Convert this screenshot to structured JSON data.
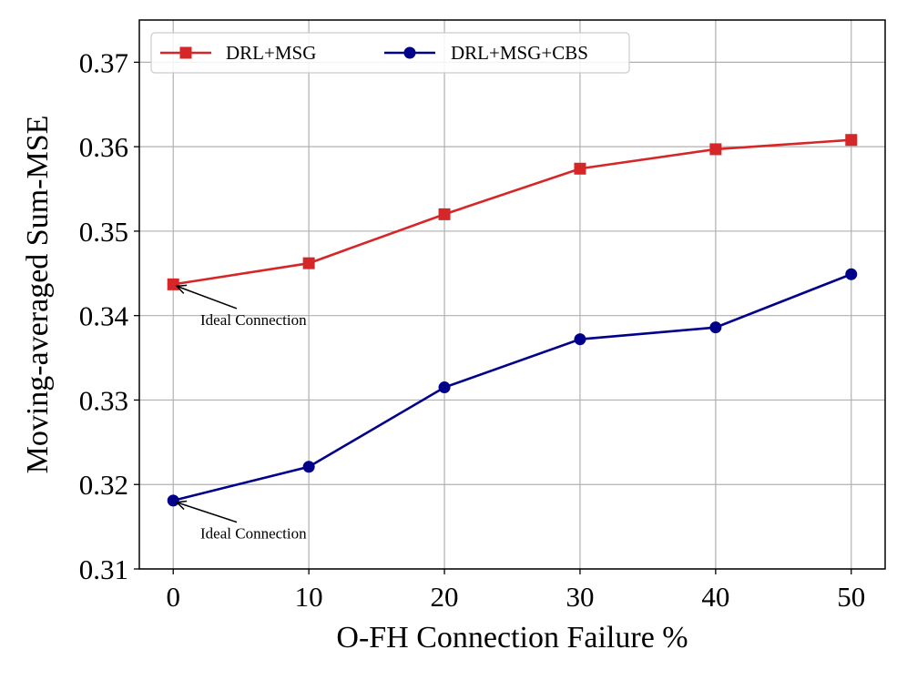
{
  "chart_data": {
    "type": "line",
    "title": "",
    "xlabel": "O-FH Connection Failure %",
    "ylabel": "Moving-averaged Sum-MSE",
    "x": [
      0,
      10,
      20,
      30,
      40,
      50
    ],
    "xlim": [
      -2.5,
      52.5
    ],
    "ylim": [
      0.31,
      0.375
    ],
    "xticks": [
      0,
      10,
      20,
      30,
      40,
      50
    ],
    "yticks": [
      0.31,
      0.32,
      0.33,
      0.34,
      0.35,
      0.36,
      0.37
    ],
    "xtick_labels": [
      "0",
      "10",
      "20",
      "30",
      "40",
      "50"
    ],
    "ytick_labels": [
      "0.31",
      "0.32",
      "0.33",
      "0.34",
      "0.35",
      "0.36",
      "0.37"
    ],
    "grid": true,
    "legend_position": "top-left",
    "series": [
      {
        "name": "DRL+MSG",
        "color": "#d62728",
        "marker": "square",
        "values": [
          0.3437,
          0.3462,
          0.352,
          0.3574,
          0.3597,
          0.3608
        ]
      },
      {
        "name": "DRL+MSG+CBS",
        "color": "#00008b",
        "marker": "circle",
        "values": [
          0.3181,
          0.3221,
          0.3315,
          0.3372,
          0.3386,
          0.3449
        ]
      }
    ],
    "annotations": [
      {
        "text": "Ideal Connection",
        "series": 0,
        "x": 0,
        "y": 0.3437,
        "text_x": 2,
        "text_y": 0.3389
      },
      {
        "text": "Ideal Connection",
        "series": 1,
        "x": 0,
        "y": 0.3181,
        "text_x": 2,
        "text_y": 0.3136
      }
    ]
  }
}
